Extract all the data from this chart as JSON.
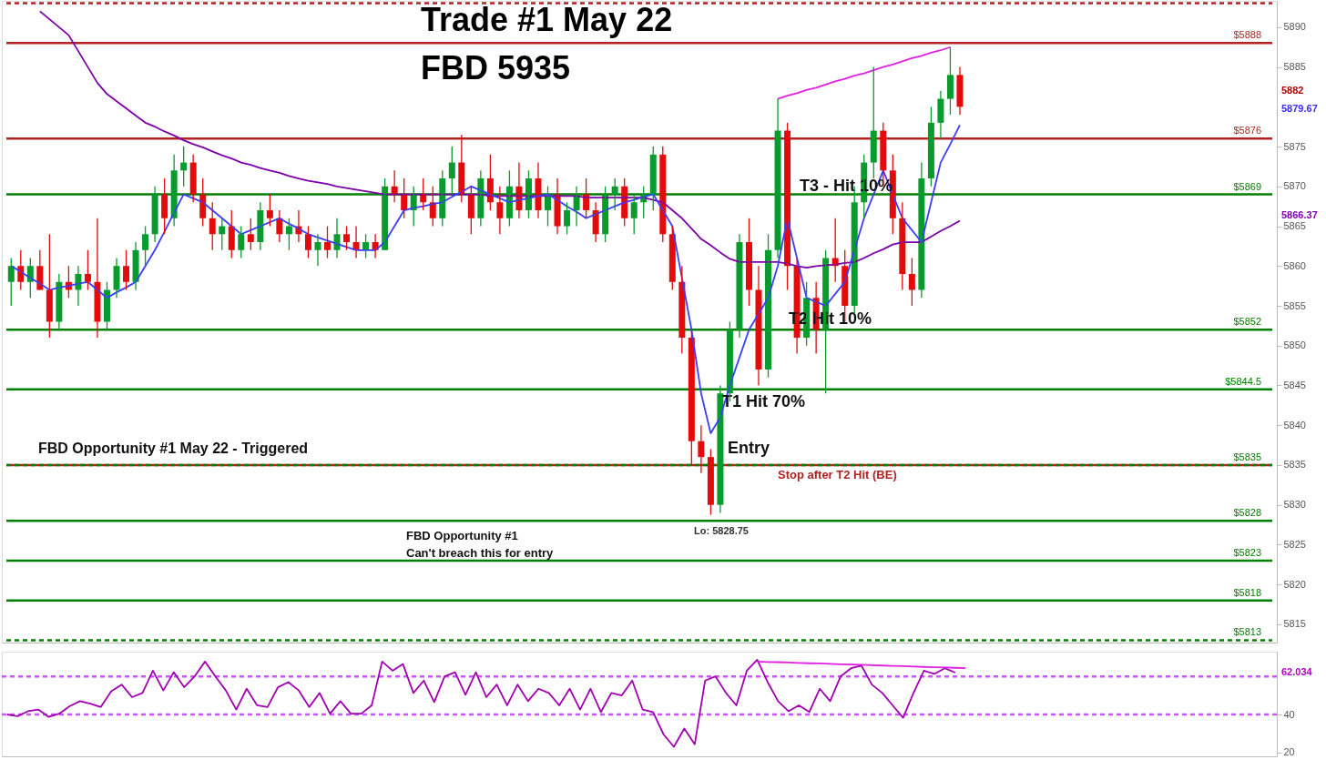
{
  "chart_data": [
    {
      "type": "candlestick",
      "title": "Trade #1 May 22",
      "subtitle": "FBD 5935",
      "tick_labels": "y",
      "grid": false,
      "categories": [
        null,
        null,
        null,
        null,
        null,
        null,
        null,
        null,
        null,
        null,
        null,
        null,
        null,
        null,
        null,
        null,
        null,
        null,
        null,
        null,
        null,
        null,
        null,
        null,
        null,
        null,
        null,
        null,
        null,
        null,
        null,
        null,
        null,
        null,
        null,
        null,
        null,
        null,
        null,
        null,
        null,
        null,
        null,
        null,
        null,
        null,
        null,
        null,
        null,
        null,
        null,
        null,
        null,
        null,
        null,
        null,
        null,
        null,
        null,
        null,
        null,
        null,
        null,
        null,
        null,
        null,
        null,
        null,
        null,
        null,
        null,
        null,
        null,
        null,
        null,
        null,
        null,
        null,
        null,
        null,
        null,
        null,
        null,
        null,
        null,
        null,
        null,
        null,
        null,
        null,
        null,
        null,
        null,
        null,
        null,
        null,
        null,
        null,
        null,
        null
      ],
      "ohlc": [
        [
          5858,
          5861,
          5855,
          5860
        ],
        [
          5860,
          5862,
          5857,
          5858
        ],
        [
          5858,
          5861,
          5856,
          5860
        ],
        [
          5860,
          5862,
          5857,
          5857
        ],
        [
          5857,
          5864,
          5851,
          5853
        ],
        [
          5853,
          5859,
          5852,
          5858
        ],
        [
          5858,
          5860,
          5856,
          5857
        ],
        [
          5857,
          5860,
          5855,
          5859
        ],
        [
          5859,
          5862,
          5857,
          5858
        ],
        [
          5858,
          5866,
          5851,
          5853
        ],
        [
          5853,
          5858,
          5852,
          5857
        ],
        [
          5857,
          5861,
          5856,
          5860
        ],
        [
          5860,
          5862,
          5857,
          5858
        ],
        [
          5858,
          5863,
          5857,
          5862
        ],
        [
          5862,
          5865,
          5860,
          5864
        ],
        [
          5864,
          5870,
          5863,
          5869
        ],
        [
          5869,
          5871,
          5864,
          5866
        ],
        [
          5866,
          5874,
          5865,
          5872
        ],
        [
          5872,
          5875,
          5870,
          5873
        ],
        [
          5873,
          5874,
          5868,
          5869
        ],
        [
          5869,
          5871,
          5865,
          5866
        ],
        [
          5866,
          5868,
          5862,
          5864
        ],
        [
          5864,
          5866,
          5862,
          5865
        ],
        [
          5865,
          5867,
          5861,
          5862
        ],
        [
          5862,
          5865,
          5861,
          5864
        ],
        [
          5864,
          5866,
          5862,
          5863
        ],
        [
          5863,
          5868,
          5862,
          5867
        ],
        [
          5867,
          5869,
          5865,
          5866
        ],
        [
          5866,
          5867,
          5863,
          5864
        ],
        [
          5864,
          5866,
          5862,
          5865
        ],
        [
          5865,
          5867,
          5863,
          5864
        ],
        [
          5864,
          5865,
          5861,
          5862
        ],
        [
          5862,
          5864,
          5860,
          5863
        ],
        [
          5863,
          5865,
          5861,
          5862
        ],
        [
          5862,
          5866,
          5861,
          5864
        ],
        [
          5864,
          5865,
          5862,
          5863
        ],
        [
          5863,
          5865,
          5861,
          5862
        ],
        [
          5862,
          5864,
          5861,
          5863
        ],
        [
          5863,
          5864,
          5861,
          5862
        ],
        [
          5862,
          5871,
          5862,
          5870
        ],
        [
          5870,
          5872,
          5868,
          5869
        ],
        [
          5869,
          5871,
          5866,
          5867
        ],
        [
          5867,
          5870,
          5865,
          5869
        ],
        [
          5869,
          5871,
          5867,
          5868
        ],
        [
          5868,
          5870,
          5865,
          5866
        ],
        [
          5866,
          5872,
          5865,
          5871
        ],
        [
          5871,
          5875,
          5869,
          5873
        ],
        [
          5873,
          5876.5,
          5868,
          5869
        ],
        [
          5869,
          5870,
          5864,
          5866
        ],
        [
          5866,
          5872,
          5865,
          5871
        ],
        [
          5871,
          5874,
          5867,
          5868
        ],
        [
          5868,
          5870,
          5864,
          5866
        ],
        [
          5866,
          5872,
          5865,
          5870
        ],
        [
          5870,
          5873,
          5866,
          5867
        ],
        [
          5867,
          5872,
          5866,
          5871
        ],
        [
          5871,
          5873,
          5866,
          5867
        ],
        [
          5867,
          5870,
          5865,
          5869
        ],
        [
          5869,
          5871,
          5864,
          5865
        ],
        [
          5865,
          5868,
          5864,
          5867
        ],
        [
          5867,
          5870,
          5865,
          5869
        ],
        [
          5869,
          5871,
          5866,
          5867
        ],
        [
          5867,
          5868,
          5863,
          5864
        ],
        [
          5864,
          5870,
          5863,
          5869
        ],
        [
          5869,
          5871,
          5867,
          5870
        ],
        [
          5870,
          5871,
          5865,
          5866
        ],
        [
          5866,
          5869,
          5864,
          5868
        ],
        [
          5868,
          5870,
          5866,
          5869
        ],
        [
          5869,
          5875,
          5867,
          5874
        ],
        [
          5874,
          5875,
          5863,
          5864
        ],
        [
          5864,
          5865,
          5857,
          5858
        ],
        [
          5858,
          5860,
          5849,
          5851
        ],
        [
          5851,
          5852,
          5835,
          5838
        ],
        [
          5838,
          5840,
          5834,
          5836
        ],
        [
          5836,
          5837,
          5828.75,
          5830
        ],
        [
          5830,
          5845,
          5829,
          5844
        ],
        [
          5844,
          5853,
          5843,
          5852
        ],
        [
          5852,
          5864,
          5851,
          5863
        ],
        [
          5863,
          5866,
          5855,
          5857
        ],
        [
          5857,
          5860,
          5845,
          5847
        ],
        [
          5847,
          5864,
          5846,
          5862
        ],
        [
          5862,
          5881,
          5861,
          5877
        ],
        [
          5877,
          5878,
          5857,
          5860
        ],
        [
          5860,
          5861,
          5849,
          5851
        ],
        [
          5851,
          5858,
          5850,
          5856
        ],
        [
          5856,
          5858,
          5849,
          5852
        ],
        [
          5852,
          5862,
          5844,
          5861
        ],
        [
          5861,
          5866,
          5858,
          5860
        ],
        [
          5860,
          5862,
          5853,
          5855
        ],
        [
          5855,
          5870,
          5854,
          5868
        ],
        [
          5868,
          5874,
          5866,
          5873
        ],
        [
          5873,
          5885,
          5871,
          5877
        ],
        [
          5877,
          5878,
          5870,
          5872
        ],
        [
          5872,
          5874,
          5864,
          5866
        ],
        [
          5866,
          5868,
          5857,
          5859
        ],
        [
          5859,
          5861,
          5855,
          5857
        ],
        [
          5857,
          5873,
          5856,
          5871
        ],
        [
          5871,
          5880,
          5870,
          5878
        ],
        [
          5878,
          5882,
          5876,
          5881
        ],
        [
          5881,
          5887.5,
          5879,
          5884
        ],
        [
          5884,
          5885,
          5879,
          5880
        ]
      ],
      "colors": [
        "#089b2d",
        "#e30b0b",
        "#089b2d",
        "#e30b0b",
        "#e30b0b",
        "#089b2d",
        "#e30b0b",
        "#089b2d",
        "#e30b0b",
        "#e30b0b",
        "#089b2d",
        "#089b2d",
        "#e30b0b",
        "#089b2d",
        "#089b2d",
        "#089b2d",
        "#e30b0b",
        "#089b2d",
        "#089b2d",
        "#e30b0b",
        "#e30b0b",
        "#e30b0b",
        "#089b2d",
        "#e30b0b",
        "#089b2d",
        "#e30b0b",
        "#089b2d",
        "#e30b0b",
        "#e30b0b",
        "#089b2d",
        "#e30b0b",
        "#e30b0b",
        "#089b2d",
        "#e30b0b",
        "#089b2d",
        "#e30b0b",
        "#e30b0b",
        "#089b2d",
        "#e30b0b",
        "#089b2d",
        "#e30b0b",
        "#e30b0b",
        "#089b2d",
        "#e30b0b",
        "#e30b0b",
        "#089b2d",
        "#089b2d",
        "#e30b0b",
        "#e30b0b",
        "#089b2d",
        "#e30b0b",
        "#e30b0b",
        "#089b2d",
        "#e30b0b",
        "#089b2d",
        "#e30b0b",
        "#089b2d",
        "#e30b0b",
        "#089b2d",
        "#089b2d",
        "#e30b0b",
        "#e30b0b",
        "#089b2d",
        "#089b2d",
        "#e30b0b",
        "#089b2d",
        "#089b2d",
        "#089b2d",
        "#e30b0b",
        "#e30b0b",
        "#e30b0b",
        "#e30b0b",
        "#e30b0b",
        "#e30b0b",
        "#089b2d",
        "#089b2d",
        "#089b2d",
        "#e30b0b",
        "#e30b0b",
        "#089b2d",
        "#089b2d",
        "#e30b0b",
        "#e30b0b",
        "#089b2d",
        "#e30b0b",
        "#089b2d",
        "#e30b0b",
        "#e30b0b",
        "#089b2d",
        "#089b2d",
        "#089b2d",
        "#e30b0b",
        "#e30b0b",
        "#e30b0b",
        "#e30b0b",
        "#089b2d",
        "#089b2d",
        "#089b2d",
        "#089b2d",
        "#e30b0b"
      ],
      "series": [
        {
          "type": "line",
          "color": "#7b00a8",
          "values": [
            null,
            null,
            null,
            5892,
            5891,
            5890,
            5889,
            5887,
            5885,
            5883,
            5881.6,
            5880.7,
            5879.8,
            5878.9,
            5878,
            5877.5,
            5876.9,
            5876.4,
            5875.8,
            5875.3,
            5874.9,
            5874.4,
            5873.9,
            5873.5,
            5873,
            5872.7,
            5872.3,
            5872,
            5871.7,
            5871.3,
            5871,
            5870.7,
            5870.5,
            5870.3,
            5870,
            5869.8,
            5869.6,
            5869.4,
            5869.2,
            5869,
            5869,
            5869,
            5869,
            5869,
            5869,
            5869,
            5869,
            5869,
            5869,
            5869,
            5868.8,
            5868.8,
            5868.8,
            5868.8,
            5868.8,
            5868.8,
            5868.8,
            5868.8,
            5868.8,
            5868.8,
            5868.6,
            5868.6,
            5868.6,
            5868.6,
            5868.6,
            5868.6,
            5868.6,
            5868.3,
            5868,
            5867,
            5866,
            5864.7,
            5863.4,
            5862.6,
            5861.7,
            5860.9,
            5860.5,
            5860.5,
            5860.5,
            5860.5,
            5860.5,
            5860.3,
            5860,
            5859.8,
            5860,
            5860.1,
            5860.2,
            5860.4,
            5860.5,
            5861,
            5861.6,
            5862.1,
            5862.7,
            5863,
            5863,
            5863,
            5863.7,
            5864.4,
            5865,
            5865.7
          ]
        },
        {
          "type": "line",
          "color": "#3d3dff",
          "values": [
            5860,
            5859.3,
            5858.5,
            5857.8,
            5857,
            5857.3,
            5857.5,
            5857.8,
            5858,
            5857,
            5856,
            5856.7,
            5857.3,
            5858,
            5860,
            5862,
            5864.3,
            5866.7,
            5869,
            5868.5,
            5868,
            5867,
            5866,
            5865,
            5864,
            5864.5,
            5865,
            5865.5,
            5866,
            5865.3,
            5864.7,
            5864,
            5863.6,
            5863.2,
            5862.8,
            5862.4,
            5862,
            5862,
            5862,
            5863,
            5865,
            5867,
            5867.3,
            5867.5,
            5867.8,
            5868,
            5868.7,
            5869.3,
            5870,
            5869.5,
            5869,
            5868.5,
            5868,
            5868.3,
            5868.5,
            5868.8,
            5869,
            5868.3,
            5867.5,
            5866.8,
            5866,
            5866.5,
            5867,
            5867.5,
            5868,
            5868.3,
            5868.7,
            5869,
            5867,
            5865,
            5858.5,
            5852,
            5844,
            5839,
            5841,
            5845,
            5848.5,
            5852,
            5854,
            5856,
            5860,
            5866,
            5861,
            5856,
            5855.5,
            5855,
            5856.5,
            5858,
            5862,
            5866,
            5869,
            5872,
            5869,
            5866,
            5864.5,
            5863,
            5868,
            5873,
            5875.3,
            5877.7
          ]
        },
        {
          "type": "line",
          "color": "#e020e0",
          "values": [
            null,
            null,
            null,
            null,
            null,
            null,
            null,
            null,
            null,
            null,
            null,
            null,
            null,
            null,
            null,
            null,
            null,
            null,
            null,
            null,
            null,
            null,
            null,
            null,
            null,
            null,
            null,
            null,
            null,
            null,
            null,
            null,
            null,
            null,
            null,
            null,
            null,
            null,
            null,
            null,
            null,
            null,
            null,
            null,
            null,
            null,
            null,
            null,
            null,
            null,
            null,
            null,
            null,
            null,
            null,
            null,
            null,
            null,
            null,
            null,
            null,
            null,
            null,
            null,
            null,
            null,
            null,
            null,
            null,
            null,
            null,
            null,
            null,
            null,
            null,
            null,
            null,
            null,
            null,
            null,
            5881.0,
            5881.4,
            5881.7,
            5882.1,
            5882.4,
            5882.8,
            5883.2,
            5883.5,
            5883.9,
            5884.2,
            5884.6,
            5885.0,
            5885.3,
            5885.7,
            5886.1,
            5886.4,
            5886.8,
            5887.1,
            5887.5,
            null
          ]
        }
      ],
      "ylim": [
        5812.7,
        5893.3
      ],
      "yticks": [
        5815,
        5820,
        5825,
        5830,
        5835,
        5840,
        5845,
        5850,
        5855,
        5860,
        5865,
        5870,
        5875,
        5885,
        5890
      ],
      "ref_lines": [
        {
          "axis": "y",
          "value": 5893,
          "color": "#b22222",
          "line_style": "dashed"
        },
        {
          "axis": "y",
          "value": 5888,
          "label": "$5888",
          "color": "#b22222"
        },
        {
          "axis": "y",
          "value": 5876,
          "label": "$5876",
          "color": "#b22222"
        },
        {
          "axis": "y",
          "value": 5869,
          "label": "$5869",
          "color": "#008000"
        },
        {
          "axis": "y",
          "value": 5852,
          "label": "$5852",
          "color": "#008000"
        },
        {
          "axis": "y",
          "value": 5844.5,
          "label": "$5844.5",
          "color": "#008000"
        },
        {
          "axis": "y",
          "value": 5835,
          "color": "#b22222"
        },
        {
          "axis": "y",
          "value": 5835,
          "label": "$5835",
          "color": "#008000",
          "line_style": "dashed"
        },
        {
          "axis": "y",
          "value": 5828,
          "label": "$5828",
          "color": "#008000"
        },
        {
          "axis": "y",
          "value": 5823,
          "label": "$5823",
          "color": "#008000"
        },
        {
          "axis": "y",
          "value": 5818,
          "label": "$5818",
          "color": "#008000"
        },
        {
          "axis": "y",
          "value": 5813,
          "label": "$5813",
          "color": "#008000",
          "line_style": "dashed"
        }
      ],
      "annotations": [
        "FBD Opportunity #1 May 22 - Triggered",
        "Entry",
        {
          "text": "Stop after T2 Hit (BE)",
          "y": 5835
        },
        {
          "text": "T1 Hit 70%",
          "y": 5844.5
        },
        {
          "text": "T2 Hit 10%",
          "y": 5852
        },
        {
          "text": "T3 - Hit 10%",
          "y": 5869
        },
        {
          "text": "Lo: 5828.75",
          "y": 5828.75
        },
        "FBD Opportunity #1\nCan't breach this for entry",
        "5882",
        "5879.67",
        "5866.37"
      ]
    },
    {
      "type": "line",
      "tick_labels": "y",
      "grid": false,
      "categories": [
        null,
        null,
        null,
        null,
        null,
        null,
        null,
        null,
        null,
        null,
        null,
        null,
        null,
        null,
        null,
        null,
        null,
        null,
        null,
        null,
        null,
        null,
        null,
        null,
        null,
        null,
        null,
        null,
        null,
        null,
        null,
        null,
        null,
        null,
        null,
        null,
        null,
        null,
        null,
        null,
        null,
        null,
        null,
        null,
        null,
        null,
        null,
        null,
        null,
        null,
        null,
        null,
        null,
        null,
        null,
        null,
        null,
        null,
        null,
        null,
        null,
        null,
        null,
        null,
        null,
        null,
        null,
        null,
        null,
        null,
        null,
        null,
        null,
        null,
        null,
        null,
        null,
        null,
        null,
        null,
        null,
        null,
        null,
        null,
        null,
        null,
        null,
        null,
        null,
        null,
        null,
        null,
        null
      ],
      "series": [
        {
          "color": "#a000b0",
          "values": [
            40.0,
            39.1,
            41.7,
            42.6,
            38.7,
            40.4,
            44.3,
            47.0,
            45.7,
            43.9,
            52.2,
            55.7,
            49.1,
            51.3,
            63.0,
            52.6,
            62.2,
            54.3,
            60.0,
            67.8,
            60.0,
            52.6,
            42.6,
            53.5,
            44.8,
            43.9,
            54.3,
            57.0,
            52.6,
            43.9,
            51.3,
            40.4,
            47.0,
            40.4,
            40.4,
            44.8,
            67.8,
            63.0,
            66.5,
            51.3,
            57.8,
            46.5,
            60.0,
            62.2,
            50.4,
            62.2,
            49.1,
            55.7,
            44.8,
            55.7,
            47.0,
            53.5,
            51.3,
            44.8,
            53.5,
            42.6,
            53.5,
            41.3,
            51.3,
            50.0,
            57.8,
            42.6,
            41.3,
            29.6,
            23.0,
            32.6,
            24.3,
            57.8,
            60.0,
            51.3,
            44.8,
            63.0,
            68.7,
            57.0,
            47.0,
            41.7,
            44.8,
            41.3,
            53.5,
            47.0,
            60.0,
            64.3,
            65.7,
            55.7,
            51.3,
            44.8,
            38.3,
            51.3,
            63.0,
            61.3,
            64.3,
            62.0,
            null
          ]
        },
        {
          "color": "#e020e0",
          "values": [
            null,
            null,
            null,
            null,
            null,
            null,
            null,
            null,
            null,
            null,
            null,
            null,
            null,
            null,
            null,
            null,
            null,
            null,
            null,
            null,
            null,
            null,
            null,
            null,
            null,
            null,
            null,
            null,
            null,
            null,
            null,
            null,
            null,
            null,
            null,
            null,
            null,
            null,
            null,
            null,
            null,
            null,
            null,
            null,
            null,
            null,
            null,
            null,
            null,
            null,
            null,
            null,
            null,
            null,
            null,
            null,
            null,
            null,
            null,
            null,
            null,
            null,
            null,
            null,
            null,
            null,
            null,
            null,
            null,
            null,
            null,
            null,
            67.8,
            67.6,
            67.5,
            67.3,
            67.1,
            66.9,
            66.8,
            66.6,
            66.4,
            66.2,
            66.1,
            65.9,
            65.7,
            65.5,
            65.4,
            65.2,
            65.0,
            64.8,
            64.7,
            64.5,
            64.3
          ]
        }
      ],
      "ylim": [
        18,
        73
      ],
      "yticks": [
        20,
        40
      ],
      "ref_lines": [
        {
          "axis": "y",
          "value": 60,
          "color": "#cc55ff",
          "line_style": "dashed"
        },
        {
          "axis": "y",
          "value": 40,
          "color": "#cc55ff",
          "line_style": "dashed"
        }
      ],
      "annotations": [
        "62.034"
      ]
    }
  ]
}
